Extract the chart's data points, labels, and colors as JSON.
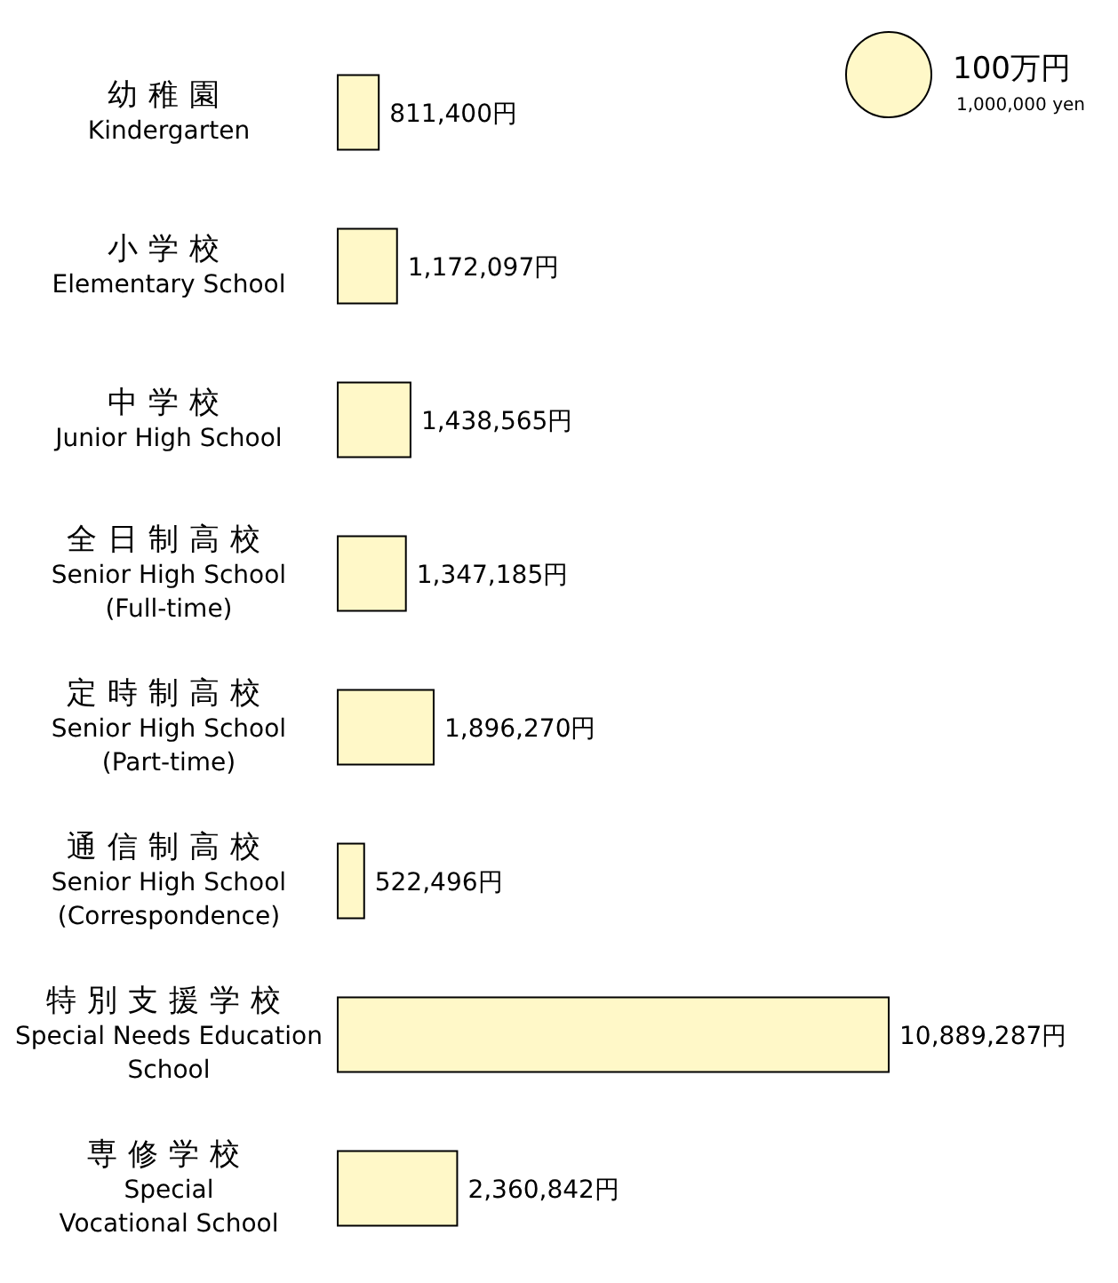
{
  "chart_data": {
    "type": "bar",
    "orientation": "horizontal",
    "color": "#fff8c8",
    "categories": [
      "幼稚園\nKindergarten",
      "小学校\nElementary School",
      "中学校\nJunior High School",
      "全日制高校\nSenior High School\n(Full-time)",
      "定時制高校\nSenior High School\n(Part-time)",
      "通信制高校\nSenior High School\n(Correspondence)",
      "特別支援学校\nSpecial Needs Education\nSchool",
      "専修学校\nSpecial\nVocational School"
    ],
    "values": [
      811400,
      1172097,
      1438565,
      1347185,
      1896270,
      522496,
      10889287,
      2360842
    ],
    "value_labels": [
      "811,400円",
      "1,172,097円",
      "1,438,565円",
      "1,347,185円",
      "1,896,270円",
      "522,496円",
      "10,889,287円",
      "2,360,842円"
    ],
    "annotations": [
      "100万円",
      "1,000,000 yen"
    ]
  }
}
